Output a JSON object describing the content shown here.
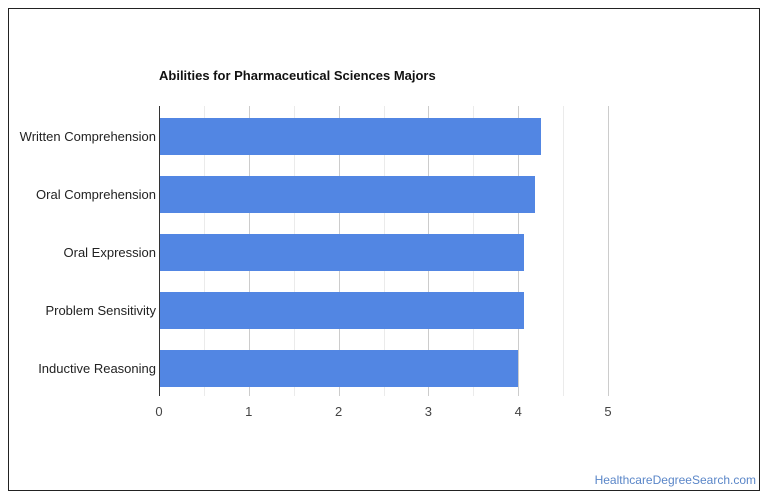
{
  "chart_data": {
    "type": "bar",
    "orientation": "horizontal",
    "title": "Abilities for Pharmaceutical Sciences Majors",
    "categories": [
      "Written Comprehension",
      "Oral Comprehension",
      "Oral Expression",
      "Problem Sensitivity",
      "Inductive Reasoning"
    ],
    "values": [
      4.25,
      4.19,
      4.06,
      4.06,
      4.0
    ],
    "xlabel": "",
    "ylabel": "",
    "xlim": [
      0,
      5
    ],
    "xticks": [
      "0",
      "1",
      "2",
      "3",
      "4",
      "5"
    ],
    "grid": true,
    "legend": null,
    "bar_color": "#5286e3"
  },
  "credit": {
    "text": "HealthcareDegreeSearch.com",
    "color": "#5a86c8"
  }
}
